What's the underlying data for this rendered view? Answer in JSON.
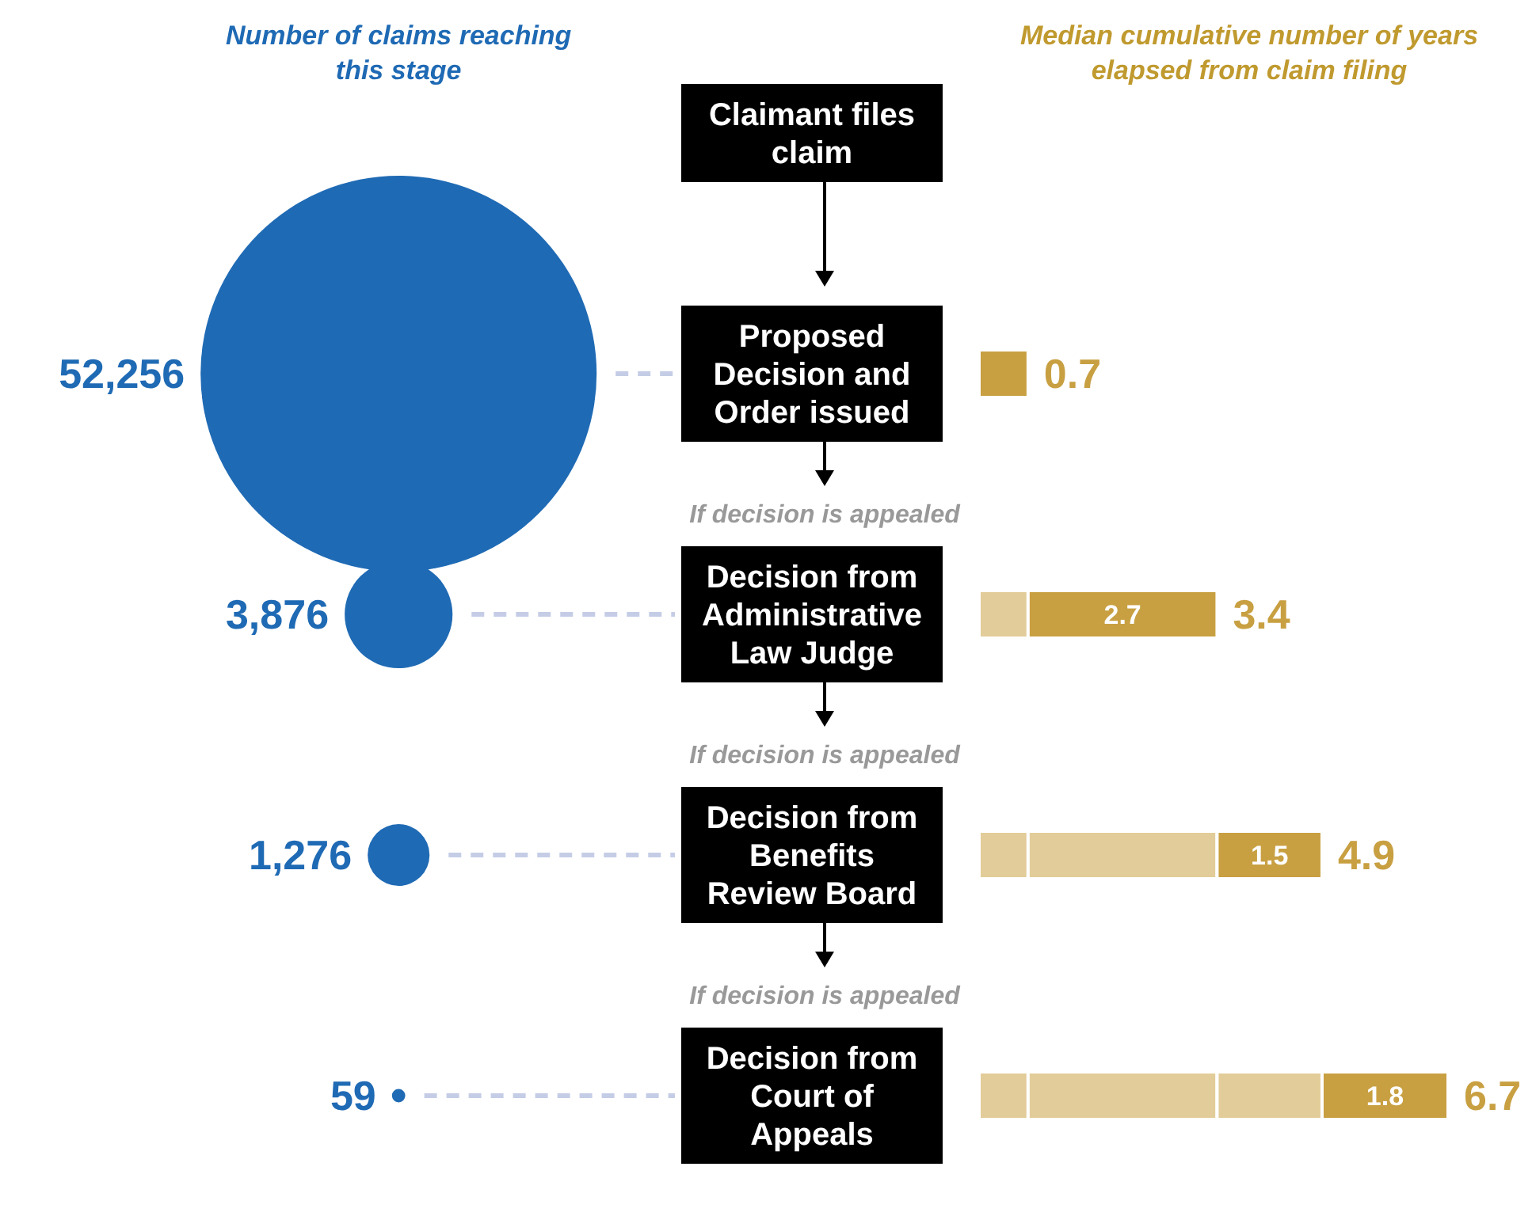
{
  "chart_data": [
    {
      "type": "other",
      "title": "Number of claims reaching this stage",
      "values": [
        null,
        52256,
        3876,
        1276,
        59
      ],
      "color": "#1f6ab4",
      "value_labels": [
        null,
        "52,256",
        "3,876",
        "1,276",
        "59"
      ]
    },
    {
      "type": "bar",
      "orientation": "horizontal",
      "stacked": true,
      "title": "Median cumulative number of years elapsed from claim filing",
      "categories": [
        "Claimant files claim",
        "Proposed Decision and Order issued",
        "Decision from Administrative Law Judge",
        "Decision from Benefits Review Board",
        "Decision from Court of Appeals"
      ],
      "series": [
        {
          "color": "#c8a042",
          "colors": [
            null,
            "#c8a042",
            "#e2cc99",
            "#e2cc99",
            "#e2cc99"
          ],
          "values": [
            null,
            0.7,
            0.7,
            0.7,
            0.7
          ]
        },
        {
          "color": "#c8a042",
          "colors": [
            null,
            null,
            "#c8a042",
            "#e2cc99",
            "#e2cc99"
          ],
          "values": [
            null,
            null,
            2.7,
            2.7,
            2.7
          ],
          "value_labels": [
            null,
            null,
            "2.7",
            null,
            null
          ]
        },
        {
          "color": "#c8a042",
          "colors": [
            null,
            null,
            null,
            "#c8a042",
            "#e2cc99"
          ],
          "values": [
            null,
            null,
            null,
            1.5,
            1.5
          ],
          "value_labels": [
            null,
            null,
            null,
            "1.5",
            null
          ]
        },
        {
          "color": "#c8a042",
          "colors": [
            null,
            null,
            null,
            null,
            "#c8a042"
          ],
          "values": [
            null,
            null,
            null,
            null,
            1.8
          ],
          "value_labels": [
            null,
            null,
            null,
            null,
            "1.8"
          ]
        }
      ],
      "totals": [
        null,
        "0.7",
        "3.4",
        "4.9",
        "6.7"
      ],
      "annotations": [
        "If decision is appealed",
        "If decision is appealed",
        "If decision is appealed"
      ]
    }
  ]
}
